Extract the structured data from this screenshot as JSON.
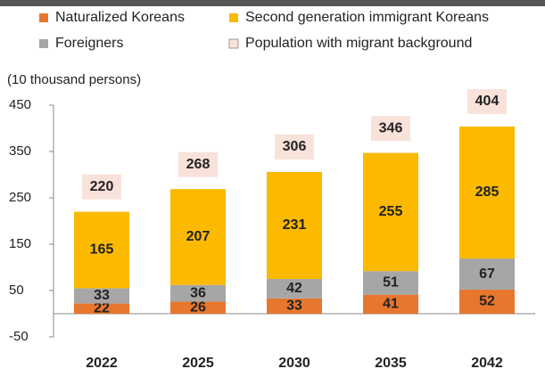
{
  "chart_data": {
    "type": "stacked_bar",
    "y_label": "(10 thousand persons)",
    "categories": [
      "2022",
      "2025",
      "2030",
      "2035",
      "2042"
    ],
    "series": [
      {
        "name": "Naturalized Koreans",
        "color": "#e8772e",
        "values": [
          22,
          26,
          33,
          41,
          52
        ]
      },
      {
        "name": "Foreigners",
        "color": "#a6a6a6",
        "values": [
          33,
          36,
          42,
          51,
          67
        ]
      },
      {
        "name": "Second generation immigrant Koreans",
        "color": "#fbb900",
        "values": [
          165,
          207,
          231,
          255,
          285
        ]
      }
    ],
    "totals": {
      "name": "Population with migrant background",
      "color": "#f9e2da",
      "values": [
        220,
        268,
        306,
        346,
        404
      ]
    },
    "ylim": [
      -50,
      450
    ],
    "yticks": [
      -50,
      50,
      150,
      250,
      350,
      450
    ]
  }
}
